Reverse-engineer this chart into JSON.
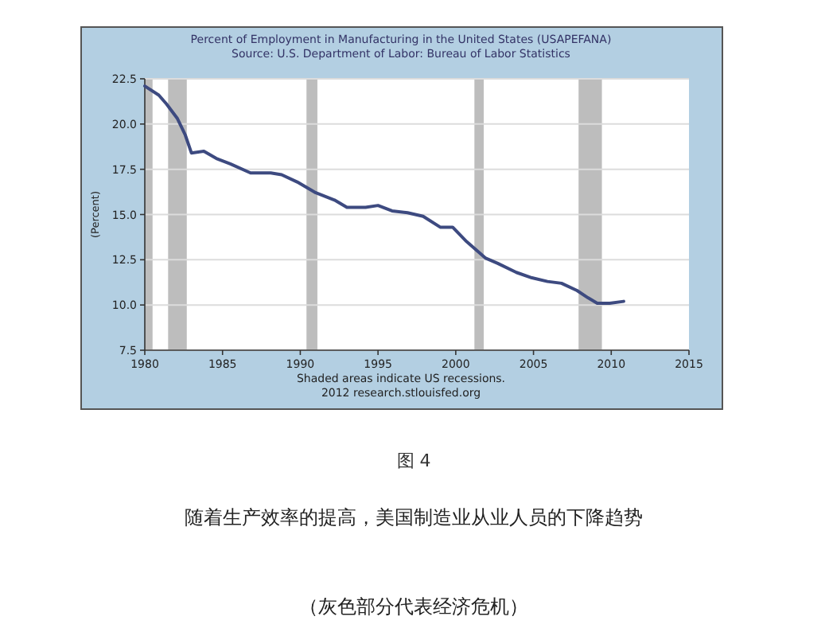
{
  "chart_data": {
    "type": "line",
    "title": "Percent of Employment in Manufacturing in the United States (USAPEFANA)",
    "subtitle": "Source: U.S. Department of Labor: Bureau of Labor Statistics",
    "ylabel": "(Percent)",
    "x": [
      1980,
      1980.9,
      1981.4,
      1982.1,
      1982.6,
      1983,
      1983.8,
      1984.6,
      1985.5,
      1986.8,
      1988.1,
      1988.8,
      1989.8,
      1991,
      1992.2,
      1993,
      1994.2,
      1995,
      1995.9,
      1996.9,
      1997.9,
      1999,
      1999.8,
      2000.7,
      2001.9,
      2002.7,
      2003.9,
      2004.9,
      2005.9,
      2006.8,
      2007.8,
      2008.5,
      2009.1,
      2009.9,
      2010.8
    ],
    "series": [
      {
        "color": "#3d4a80",
        "values": [
          22.1,
          21.6,
          21.1,
          20.3,
          19.4,
          18.4,
          18.5,
          18.1,
          17.8,
          17.3,
          17.3,
          17.2,
          16.8,
          16.2,
          15.8,
          15.4,
          15.4,
          15.5,
          15.2,
          15.1,
          14.9,
          14.3,
          14.3,
          13.5,
          12.6,
          12.3,
          11.8,
          11.5,
          11.3,
          11.2,
          10.8,
          10.4,
          10.1,
          10.1,
          10.2
        ]
      }
    ],
    "xlim": [
      1980,
      2015
    ],
    "xticks": [
      1980,
      1985,
      1990,
      1995,
      2000,
      2005,
      2010,
      2015
    ],
    "ylim": [
      7.5,
      22.5
    ],
    "yticks": [
      7.5,
      {
        "value": 10,
        "label": "10.0"
      },
      12.5,
      {
        "value": 15,
        "label": "15.0"
      },
      17.5,
      {
        "value": 20,
        "label": "20.0"
      },
      22.5
    ],
    "grid": "y",
    "marker": "none",
    "line_style": "solid",
    "bands": [
      {
        "axis": "x",
        "from": 1980,
        "to": 1980.5,
        "color": "#bdbdbd"
      },
      {
        "axis": "x",
        "from": 1981.5,
        "to": 1982.7,
        "color": "#bdbdbd"
      },
      {
        "axis": "x",
        "from": 1990.4,
        "to": 1991.1,
        "color": "#bdbdbd"
      },
      {
        "axis": "x",
        "from": 2001.2,
        "to": 2001.8,
        "color": "#bdbdbd"
      },
      {
        "axis": "x",
        "from": 2007.9,
        "to": 2009.4,
        "color": "#bdbdbd"
      }
    ],
    "annotations": [
      "Shaded areas indicate US recessions.",
      "2012 research.stlouisfed.org",
      "图 4",
      "随着生产效率的提高，美国制造业从业人员的下降趋势",
      "（灰色部分代表经济危机）"
    ]
  }
}
